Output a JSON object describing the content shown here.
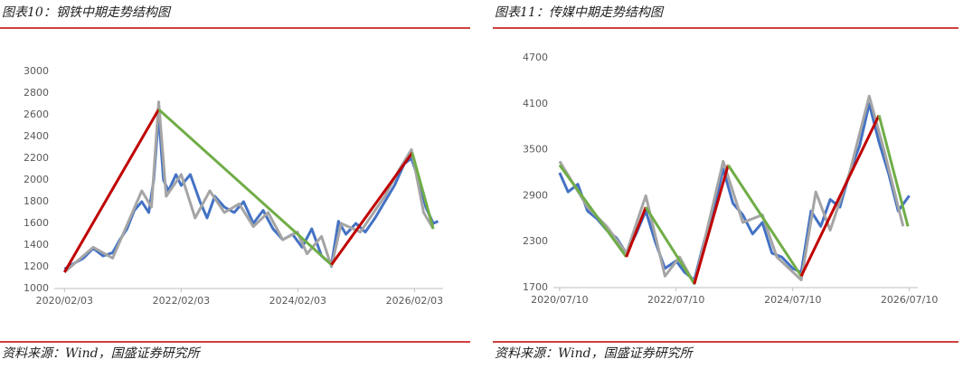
{
  "chart_data": [
    {
      "type": "line",
      "title": "图表10：钢铁中期走势结构图",
      "source": "资料来源：Wind，国盛证券研究所",
      "xlim": [
        "2019/12/01",
        "2026/08/01"
      ],
      "xticks": [
        "2020/02/03",
        "2022/02/03",
        "2024/02/03",
        "2026/02/03"
      ],
      "ylim": [
        1000,
        3000
      ],
      "yticks": [
        1000,
        1200,
        1400,
        1600,
        1800,
        2000,
        2200,
        2400,
        2600,
        2800,
        3000
      ],
      "series": [
        {
          "color": "#4472c4",
          "width": 3,
          "x": [
            "2020/02/03",
            "2020/04/01",
            "2020/06/01",
            "2020/08/01",
            "2020/10/01",
            "2020/12/01",
            "2021/01/15",
            "2021/03/01",
            "2021/04/15",
            "2021/06/01",
            "2021/07/15",
            "2021/08/15",
            "2021/09/15",
            "2021/10/15",
            "2021/11/15",
            "2022/01/01",
            "2022/02/03",
            "2022/04/01",
            "2022/06/01",
            "2022/07/15",
            "2022/09/01",
            "2022/11/01",
            "2023/01/01",
            "2023/03/01",
            "2023/05/01",
            "2023/07/01",
            "2023/09/01",
            "2023/11/01",
            "2024/01/01",
            "2024/03/01",
            "2024/05/01",
            "2024/07/01",
            "2024/09/01",
            "2024/10/15",
            "2024/12/01",
            "2025/02/01",
            "2025/04/01",
            "2025/06/01",
            "2025/08/01",
            "2025/10/01",
            "2025/12/01",
            "2026/01/15",
            "2026/03/01",
            "2026/04/15",
            "2026/06/01",
            "2026/07/01"
          ],
          "values": [
            1180,
            1230,
            1280,
            1370,
            1300,
            1330,
            1450,
            1550,
            1720,
            1800,
            1700,
            2000,
            2600,
            2000,
            1900,
            2050,
            1950,
            2050,
            1800,
            1650,
            1850,
            1750,
            1700,
            1800,
            1600,
            1720,
            1550,
            1450,
            1500,
            1380,
            1550,
            1300,
            1220,
            1620,
            1500,
            1600,
            1520,
            1650,
            1800,
            1950,
            2150,
            2200,
            2000,
            1750,
            1600,
            1620
          ]
        },
        {
          "color": "#a5a5a5",
          "width": 3,
          "x": [
            "2020/02/03",
            "2020/08/01",
            "2020/12/01",
            "2021/06/01",
            "2021/08/01",
            "2021/09/15",
            "2021/11/01",
            "2022/02/03",
            "2022/05/01",
            "2022/08/01",
            "2022/11/01",
            "2023/02/01",
            "2023/05/01",
            "2023/08/01",
            "2023/11/01",
            "2024/02/01",
            "2024/04/01",
            "2024/07/01",
            "2024/09/01",
            "2024/11/01",
            "2025/03/01",
            "2025/08/01",
            "2025/11/01",
            "2026/01/15",
            "2026/04/01",
            "2026/06/01"
          ],
          "values": [
            1150,
            1380,
            1280,
            1900,
            1750,
            2720,
            1850,
            2050,
            1650,
            1900,
            1700,
            1780,
            1570,
            1700,
            1450,
            1520,
            1320,
            1480,
            1200,
            1600,
            1520,
            1850,
            2100,
            2280,
            1700,
            1550
          ]
        },
        {
          "color": "#c00000",
          "width": 3,
          "x": [
            "2020/02/03",
            "2021/09/15"
          ],
          "values": [
            1150,
            2650
          ]
        },
        {
          "color": "#70ad47",
          "width": 3,
          "x": [
            "2021/09/15",
            "2024/09/01"
          ],
          "values": [
            2650,
            1220
          ]
        },
        {
          "color": "#c00000",
          "width": 3,
          "x": [
            "2024/09/01",
            "2026/01/20"
          ],
          "values": [
            1220,
            2250
          ]
        },
        {
          "color": "#70ad47",
          "width": 3,
          "x": [
            "2026/01/20",
            "2026/06/01"
          ],
          "values": [
            2250,
            1550
          ]
        }
      ]
    },
    {
      "type": "line",
      "title": "图表11：传媒中期走势结构图",
      "source": "资料来源：Wind，国盛证券研究所",
      "xlim": [
        "2020/06/01",
        "2026/09/01"
      ],
      "xticks": [
        "2020/07/10",
        "2022/07/10",
        "2024/07/10",
        "2026/07/10"
      ],
      "ylim": [
        1700,
        4700
      ],
      "yticks": [
        1700,
        2300,
        2900,
        3500,
        4100,
        4700
      ],
      "series": [
        {
          "color": "#4472c4",
          "width": 3,
          "x": [
            "2020/07/10",
            "2020/09/01",
            "2020/11/01",
            "2021/01/01",
            "2021/03/01",
            "2021/05/01",
            "2021/07/01",
            "2021/09/01",
            "2021/11/01",
            "2022/01/01",
            "2022/03/01",
            "2022/05/01",
            "2022/07/10",
            "2022/09/01",
            "2022/11/01",
            "2023/01/01",
            "2023/03/01",
            "2023/05/01",
            "2023/07/01",
            "2023/09/01",
            "2023/11/01",
            "2024/01/01",
            "2024/03/01",
            "2024/05/01",
            "2024/07/10",
            "2024/09/01",
            "2024/11/01",
            "2025/01/01",
            "2025/03/01",
            "2025/05/01",
            "2025/07/01",
            "2025/09/01",
            "2025/11/01",
            "2026/01/01",
            "2026/03/01",
            "2026/05/01",
            "2026/07/10"
          ],
          "values": [
            3200,
            2950,
            3050,
            2700,
            2600,
            2450,
            2350,
            2150,
            2400,
            2700,
            2300,
            1950,
            2050,
            1900,
            1800,
            2300,
            2700,
            3250,
            2800,
            2650,
            2400,
            2550,
            2150,
            2100,
            1950,
            1900,
            2700,
            2500,
            2850,
            2750,
            3200,
            3550,
            4100,
            3600,
            3200,
            2700,
            2900
          ]
        },
        {
          "color": "#a5a5a5",
          "width": 3,
          "x": [
            "2020/07/10",
            "2021/01/01",
            "2021/05/01",
            "2021/09/01",
            "2022/01/01",
            "2022/05/01",
            "2022/08/01",
            "2022/11/01",
            "2023/05/01",
            "2023/09/01",
            "2024/01/01",
            "2024/04/01",
            "2024/09/01",
            "2024/12/01",
            "2025/03/01",
            "2025/07/01",
            "2025/11/01",
            "2026/02/01",
            "2026/06/01"
          ],
          "values": [
            3350,
            2750,
            2500,
            2150,
            2900,
            1850,
            2100,
            1750,
            3350,
            2550,
            2650,
            2100,
            1800,
            2950,
            2450,
            3200,
            4200,
            3500,
            2500
          ]
        },
        {
          "color": "#70ad47",
          "width": 3,
          "x": [
            "2020/07/10",
            "2021/09/01"
          ],
          "values": [
            3300,
            2100
          ]
        },
        {
          "color": "#c00000",
          "width": 3,
          "x": [
            "2021/09/01",
            "2022/01/01"
          ],
          "values": [
            2100,
            2750
          ]
        },
        {
          "color": "#70ad47",
          "width": 3,
          "x": [
            "2022/01/01",
            "2022/11/01"
          ],
          "values": [
            2750,
            1750
          ]
        },
        {
          "color": "#c00000",
          "width": 3,
          "x": [
            "2022/11/01",
            "2023/06/01"
          ],
          "values": [
            1750,
            3300
          ]
        },
        {
          "color": "#70ad47",
          "width": 3,
          "x": [
            "2023/06/01",
            "2024/09/01"
          ],
          "values": [
            3300,
            1850
          ]
        },
        {
          "color": "#c00000",
          "width": 3,
          "x": [
            "2024/09/01",
            "2026/01/01"
          ],
          "values": [
            1850,
            3950
          ]
        },
        {
          "color": "#70ad47",
          "width": 3,
          "x": [
            "2026/01/01",
            "2026/07/01"
          ],
          "values": [
            3950,
            2500
          ]
        }
      ]
    }
  ]
}
